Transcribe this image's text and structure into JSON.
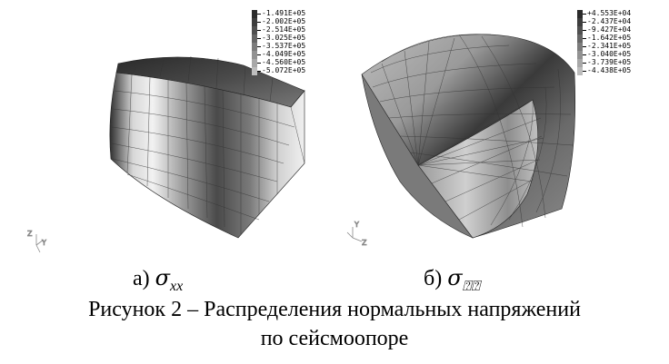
{
  "legend_left": [
    "-1.491E+05",
    "-2.002E+05",
    "-2.514E+05",
    "-3.025E+05",
    "-3.537E+05",
    "-4.049E+05",
    "-4.560E+05",
    "-5.072E+05"
  ],
  "legend_right": [
    "+4.553E+04",
    "-2.437E+04",
    "-9.427E+04",
    "-1.642E+05",
    "-2.341E+05",
    "-3.040E+05",
    "-3.739E+05",
    "-4.438E+05"
  ],
  "legend_colors": [
    "#2b2b2b",
    "#3d3d3d",
    "#505050",
    "#666666",
    "#7c7c7c",
    "#929292",
    "#a8a8a8",
    "#bdbdbd"
  ],
  "axes_left": {
    "a": "Z",
    "b": "Y"
  },
  "axes_right": {
    "a": "Y",
    "b": "Z"
  },
  "caption_a": {
    "letter": "а)",
    "symbol": "σ",
    "subscript": "xx"
  },
  "caption_b": {
    "letter": "б)",
    "symbol": "σ",
    "subscript": "⍰⍰"
  },
  "figure_title_line1": "Рисунок 2 – Распределения нормальных напряжений",
  "figure_title_line2": "по сейсмоопоре"
}
